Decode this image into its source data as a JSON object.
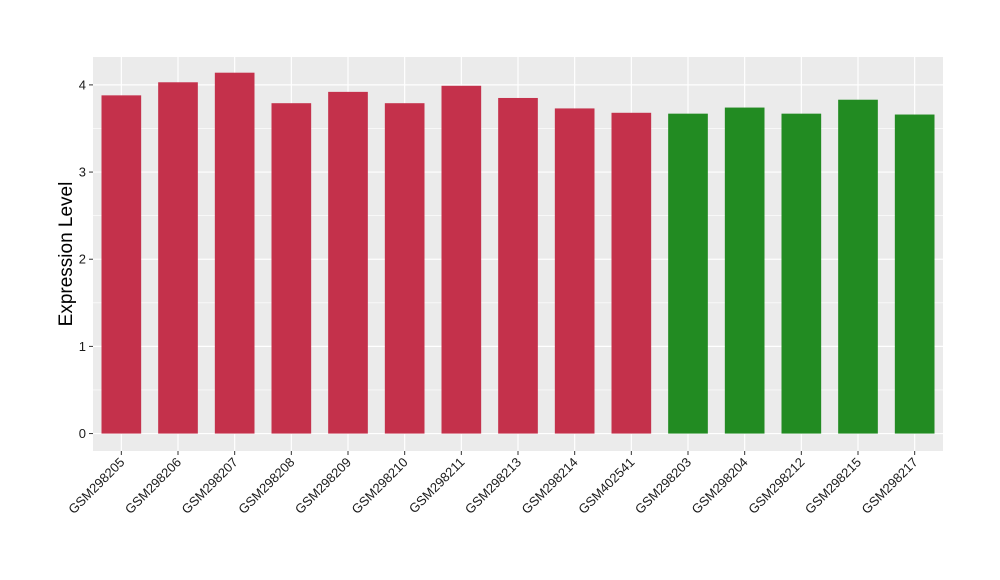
{
  "chart_data": {
    "type": "bar",
    "title": "",
    "xlabel": "",
    "ylabel": "Expression Level",
    "ylim": [
      -0.2,
      4.32
    ],
    "yticks": [
      0,
      1,
      2,
      3,
      4
    ],
    "grid": true,
    "background": "#ebebeb",
    "categories": [
      "GSM298205",
      "GSM298206",
      "GSM298207",
      "GSM298208",
      "GSM298209",
      "GSM298210",
      "GSM298211",
      "GSM298213",
      "GSM298214",
      "GSM402541",
      "GSM298203",
      "GSM298204",
      "GSM298212",
      "GSM298215",
      "GSM298217"
    ],
    "values": [
      3.88,
      4.03,
      4.14,
      3.79,
      3.92,
      3.79,
      3.99,
      3.85,
      3.73,
      3.68,
      3.67,
      3.74,
      3.67,
      3.83,
      3.66
    ],
    "colors": [
      "#c4314b",
      "#c4314b",
      "#c4314b",
      "#c4314b",
      "#c4314b",
      "#c4314b",
      "#c4314b",
      "#c4314b",
      "#c4314b",
      "#c4314b",
      "#228b22",
      "#228b22",
      "#228b22",
      "#228b22",
      "#228b22"
    ]
  }
}
